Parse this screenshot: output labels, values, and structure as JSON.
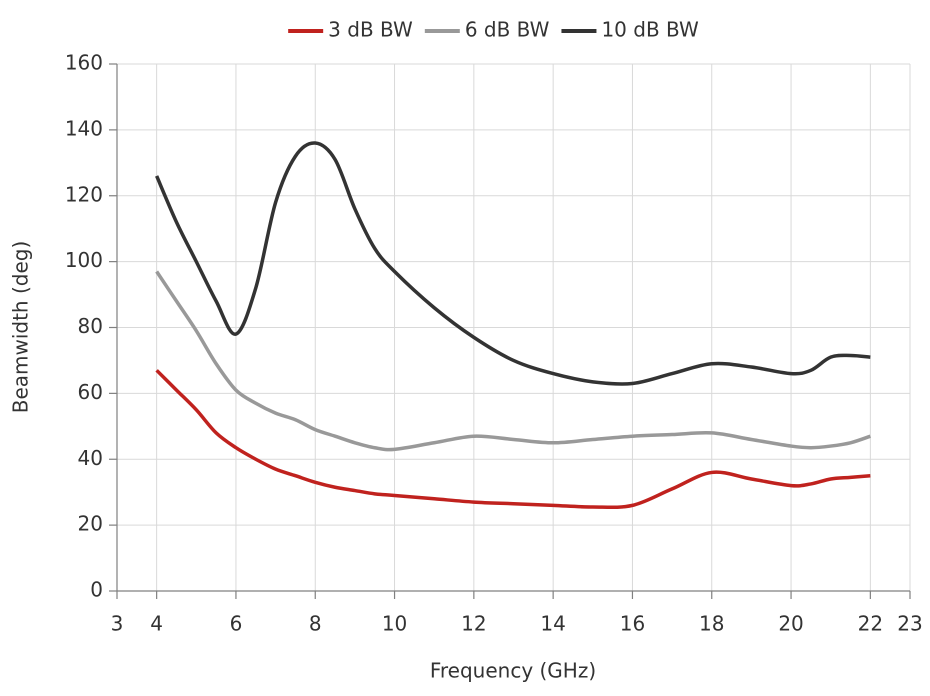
{
  "chart_data": {
    "type": "line",
    "x_label": "Frequency (GHz)",
    "y_label": "Beamwidth (deg)",
    "x": [
      4,
      4.5,
      5,
      5.5,
      6,
      6.5,
      7,
      7.5,
      8,
      8.5,
      9,
      9.5,
      10,
      11,
      12,
      13,
      14,
      15,
      16,
      17,
      18,
      19,
      20,
      20.5,
      21,
      21.5,
      22
    ],
    "series": [
      {
        "name": "3 dB BW",
        "color": "#c0221e",
        "values": [
          67,
          61,
          55,
          48,
          43.5,
          40,
          37,
          35,
          33,
          31.5,
          30.5,
          29.5,
          29,
          28,
          27,
          26.5,
          26,
          25.5,
          26,
          31,
          36,
          34,
          32,
          32.5,
          34,
          34.5,
          35
        ]
      },
      {
        "name": "6 dB BW",
        "color": "#999999",
        "values": [
          97,
          88,
          79,
          69,
          61,
          57,
          54,
          52,
          49,
          47,
          45,
          43.5,
          43,
          45,
          47,
          46,
          45,
          46,
          47,
          47.5,
          48,
          46,
          44,
          43.5,
          44,
          45,
          47
        ]
      },
      {
        "name": "10 dB BW",
        "color": "#333333",
        "values": [
          126,
          112,
          100,
          88,
          78,
          92,
          118,
          132,
          136,
          131,
          116,
          104,
          97,
          86,
          77,
          70,
          66,
          63.5,
          63,
          66,
          69,
          68,
          66,
          67,
          71,
          71.5,
          71
        ]
      }
    ],
    "xlim": [
      3,
      23
    ],
    "xticks": [
      3,
      4,
      6,
      8,
      10,
      12,
      14,
      16,
      18,
      20,
      22,
      23
    ],
    "ylim": [
      0,
      160
    ],
    "yticks": [
      0,
      20,
      40,
      60,
      80,
      100,
      120,
      140,
      160
    ],
    "grid": true,
    "legend": "top"
  }
}
